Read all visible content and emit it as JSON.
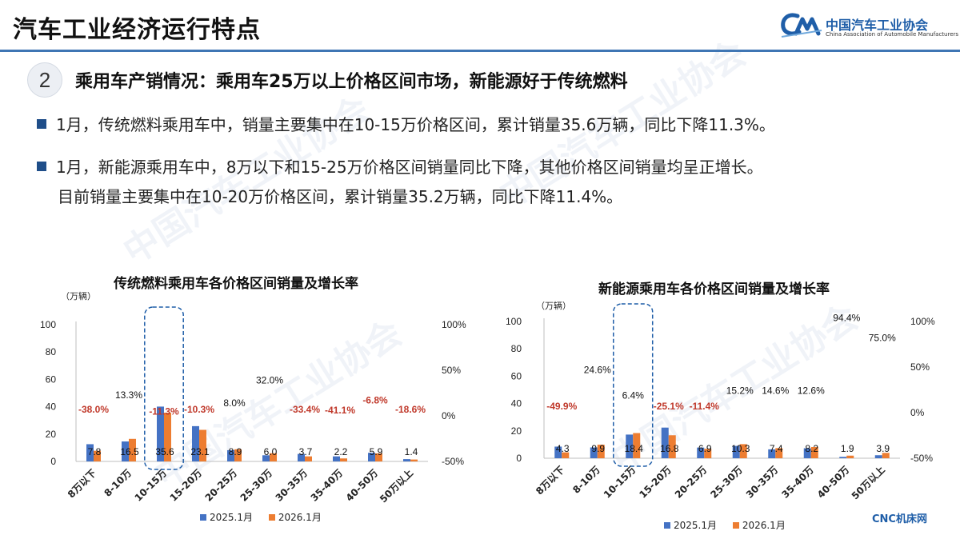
{
  "header": {
    "title": "汽车工业经济运行特点",
    "logo_cn": "中国汽车工业协会",
    "logo_en": "China Association of Automobile Manufacturers",
    "accent_color": "#3f76b4"
  },
  "section": {
    "number": "2",
    "heading": "乘用车产销情况：乘用车25万以上价格区间市场，新能源好于传统燃料"
  },
  "bullets": [
    "1月，传统燃料乘用车中，销量主要集中在10-15万价格区间，累计销量35.6万辆，同比下降11.3%。",
    "1月，新能源乘用车中，8万以下和15-25万价格区间销量同比下降，其他价格区间销量均呈正增长。"
  ],
  "bullet_continuation": "目前销量主要集中在10-20万价格区间，累计销量35.2万辆，同比下降11.4%。",
  "legend": {
    "s2025": "2025.1月",
    "s2026": "2026.1月",
    "color_2025": "#4472c4",
    "color_2026": "#ed7d31",
    "neg_color": "#c0392b"
  },
  "footer": {
    "source": "CNC机床网"
  },
  "chart_data": [
    {
      "type": "bar",
      "title": "传统燃料乘用车各价格区间销量及增长率",
      "unit": "（万辆）",
      "categories": [
        "8万以下",
        "8-10万",
        "10-15万",
        "15-20万",
        "20-25万",
        "25-30万",
        "30-35万",
        "35-40万",
        "40-50万",
        "50万以上"
      ],
      "series": [
        {
          "name": "2025.1月",
          "values": [
            12.6,
            14.6,
            40.1,
            25.8,
            8.2,
            4.5,
            5.5,
            3.7,
            6.3,
            1.7
          ]
        },
        {
          "name": "2026.1月",
          "values": [
            7.8,
            16.5,
            35.6,
            23.1,
            8.9,
            6.0,
            3.7,
            2.2,
            5.9,
            1.4
          ]
        }
      ],
      "value_labels": [
        "7.8",
        "16.5",
        "35.6",
        "23.1",
        "8.9",
        "6.0",
        "3.7",
        "2.2",
        "5.9",
        "1.4"
      ],
      "growth": [
        -38.0,
        13.3,
        -11.3,
        -10.3,
        8.0,
        32.0,
        -33.4,
        -41.1,
        -6.8,
        -18.6
      ],
      "growth_labels": [
        "-38.0%",
        "13.3%",
        "-11.3%",
        "-10.3%",
        "8.0%",
        "32.0%",
        "-33.4%",
        "-41.1%",
        "-6.8%",
        "-18.6%"
      ],
      "growth_pos": [
        0,
        16,
        -2,
        0,
        7,
        32,
        0,
        -1,
        10,
        0
      ],
      "y_left": [
        0,
        100
      ],
      "y_left_ticks": [
        "0",
        "20",
        "40",
        "60",
        "80",
        "100"
      ],
      "y_right": [
        -50,
        100
      ],
      "y_right_ticks": [
        "-50%",
        "0%",
        "50%",
        "100%"
      ],
      "highlight": "10-15万"
    },
    {
      "type": "bar",
      "title": "新能源乘用车各价格区间销量及增长率",
      "unit": "（万辆）",
      "categories": [
        "8万以下",
        "8-10万",
        "10-15万",
        "15-20万",
        "20-25万",
        "25-30万",
        "30-35万",
        "35-40万",
        "40-50万",
        "50万以上"
      ],
      "series": [
        {
          "name": "2025.1月",
          "values": [
            8.5,
            7.9,
            17.3,
            22.4,
            7.8,
            9.0,
            6.5,
            7.3,
            1.0,
            2.2
          ]
        },
        {
          "name": "2026.1月",
          "values": [
            4.3,
            9.9,
            18.4,
            16.8,
            6.9,
            10.3,
            7.4,
            8.2,
            1.9,
            3.9
          ]
        }
      ],
      "value_labels": [
        "4.3",
        "9.9",
        "18.4",
        "16.8",
        "6.9",
        "10.3",
        "7.4",
        "8.2",
        "1.9",
        "3.9"
      ],
      "growth": [
        -49.9,
        24.6,
        6.4,
        -25.1,
        -11.4,
        15.2,
        14.6,
        12.6,
        94.4,
        75.0
      ],
      "growth_labels": [
        "-49.9%",
        "24.6%",
        "6.4%",
        "-25.1%",
        "-11.4%",
        "15.2%",
        "14.6%",
        "12.6%",
        "94.4%",
        "75.0%"
      ],
      "growth_pos": [
        0,
        40,
        12,
        0,
        0,
        17,
        17,
        17,
        97,
        75
      ],
      "y_left": [
        0,
        100
      ],
      "y_left_ticks": [
        "0",
        "20",
        "40",
        "60",
        "80",
        "100"
      ],
      "y_right": [
        -50,
        100
      ],
      "y_right_ticks": [
        "-50%",
        "0%",
        "50%",
        "100%"
      ],
      "highlight": "10-15万"
    }
  ]
}
